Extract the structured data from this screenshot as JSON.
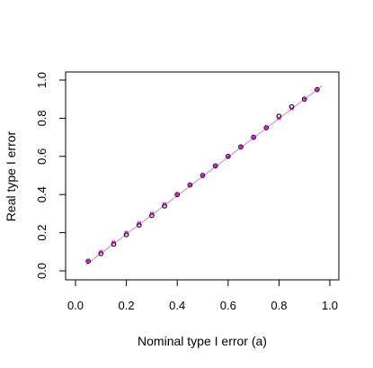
{
  "chart_data": {
    "type": "scatter",
    "title": "",
    "xlabel": "Nominal type I error (a)",
    "ylabel": "Real type I error",
    "xlim": [
      0.0,
      1.0
    ],
    "ylim": [
      0.0,
      1.0
    ],
    "x_ticks": [
      "0.0",
      "0.2",
      "0.4",
      "0.6",
      "0.8",
      "1.0"
    ],
    "y_ticks": [
      "0.0",
      "0.2",
      "0.4",
      "0.6",
      "0.8",
      "1.0"
    ],
    "grid": false,
    "legend": "none",
    "reference_line": {
      "from": [
        0.04,
        0.03
      ],
      "to": [
        0.97,
        0.97
      ],
      "color": "#c8a0c8"
    },
    "series": [
      {
        "marker": "open-circle",
        "color": "#000000",
        "x": [
          0.05,
          0.1,
          0.15,
          0.2,
          0.25,
          0.3,
          0.35,
          0.4,
          0.45,
          0.5,
          0.55,
          0.6,
          0.65,
          0.7,
          0.75,
          0.8,
          0.85,
          0.9,
          0.95
        ],
        "y": [
          0.05,
          0.09,
          0.14,
          0.19,
          0.24,
          0.29,
          0.34,
          0.4,
          0.45,
          0.5,
          0.55,
          0.6,
          0.65,
          0.7,
          0.75,
          0.81,
          0.86,
          0.9,
          0.95
        ]
      },
      {
        "marker": "x",
        "color": "#cc00cc",
        "x": [
          0.05,
          0.1,
          0.15,
          0.2,
          0.25,
          0.3,
          0.35,
          0.4,
          0.45,
          0.5,
          0.55,
          0.6,
          0.65,
          0.7,
          0.75,
          0.8,
          0.85,
          0.9,
          0.95
        ],
        "y": [
          0.05,
          0.1,
          0.15,
          0.2,
          0.25,
          0.3,
          0.35,
          0.4,
          0.45,
          0.5,
          0.55,
          0.6,
          0.65,
          0.7,
          0.75,
          0.8,
          0.85,
          0.9,
          0.95
        ]
      }
    ]
  }
}
